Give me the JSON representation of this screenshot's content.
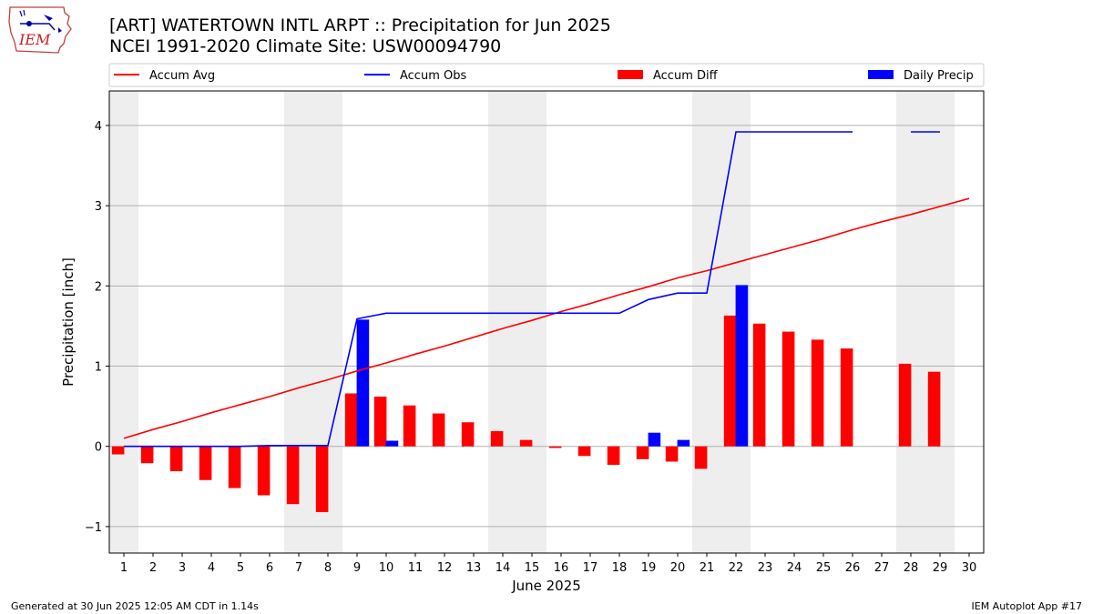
{
  "header": {
    "title_line1": "[ART] WATERTOWN INTL ARPT :: Precipitation for Jun 2025",
    "title_line2": "NCEI 1991-2020 Climate Site: USW00094790",
    "logo_text": "IEM"
  },
  "footer": {
    "left": "Generated at 30 Jun 2025 12:05 AM CDT in 1.14s",
    "right": "IEM Autoplot App #17"
  },
  "chart_data": {
    "type": "bar",
    "xlabel": "June 2025",
    "ylabel": "Precipitation [inch]",
    "ylim": [
      -1.33,
      4.43
    ],
    "yticks": [
      -1,
      0,
      1,
      2,
      3,
      4
    ],
    "ytick_labels": [
      "−1",
      "0",
      "1",
      "2",
      "3",
      "4"
    ],
    "xlim": [
      0.5,
      30.5
    ],
    "days": [
      1,
      2,
      3,
      4,
      5,
      6,
      7,
      8,
      9,
      10,
      11,
      12,
      13,
      14,
      15,
      16,
      17,
      18,
      19,
      20,
      21,
      22,
      23,
      24,
      25,
      26,
      27,
      28,
      29,
      30
    ],
    "weekend_bands": [
      [
        0.5,
        1.5
      ],
      [
        6.5,
        8.5
      ],
      [
        13.5,
        15.5
      ],
      [
        20.5,
        22.5
      ],
      [
        27.5,
        29.5
      ]
    ],
    "grid": "horizontal",
    "legend_position": "top",
    "series": [
      {
        "name": "Accum Avg",
        "kind": "line",
        "color": "#ff0000",
        "values": [
          0.1,
          0.21,
          0.31,
          0.42,
          0.52,
          0.62,
          0.73,
          0.83,
          0.94,
          1.04,
          1.15,
          1.25,
          1.36,
          1.47,
          1.57,
          1.68,
          1.78,
          1.89,
          1.99,
          2.1,
          2.19,
          2.29,
          2.39,
          2.49,
          2.59,
          2.7,
          2.8,
          2.89,
          2.99,
          3.09
        ]
      },
      {
        "name": "Accum Obs",
        "kind": "line",
        "color": "#0000ff",
        "values": [
          0.0,
          0.0,
          0.0,
          0.0,
          0.0,
          0.01,
          0.01,
          0.01,
          1.59,
          1.66,
          1.66,
          1.66,
          1.66,
          1.66,
          1.66,
          1.66,
          1.66,
          1.66,
          1.83,
          1.91,
          1.91,
          3.92,
          3.92,
          3.92,
          3.92,
          3.92,
          null,
          3.92,
          3.92,
          null
        ]
      },
      {
        "name": "Accum Diff",
        "kind": "bar",
        "color": "#ff0000",
        "values": [
          -0.1,
          -0.21,
          -0.31,
          -0.42,
          -0.52,
          -0.61,
          -0.72,
          -0.82,
          0.66,
          0.62,
          0.51,
          0.41,
          0.3,
          0.19,
          0.08,
          -0.02,
          -0.12,
          -0.23,
          -0.16,
          -0.19,
          -0.28,
          1.63,
          1.53,
          1.43,
          1.33,
          1.22,
          null,
          1.03,
          0.93,
          null
        ]
      },
      {
        "name": "Daily Precip",
        "kind": "bar",
        "color": "#0000ff",
        "values": [
          0,
          0,
          0,
          0,
          0,
          0.01,
          0,
          0,
          1.58,
          0.07,
          0,
          0,
          0,
          0,
          0,
          0,
          0,
          0,
          0.17,
          0.08,
          0,
          2.01,
          0,
          0,
          0,
          0,
          0,
          0,
          0,
          0
        ]
      }
    ]
  }
}
